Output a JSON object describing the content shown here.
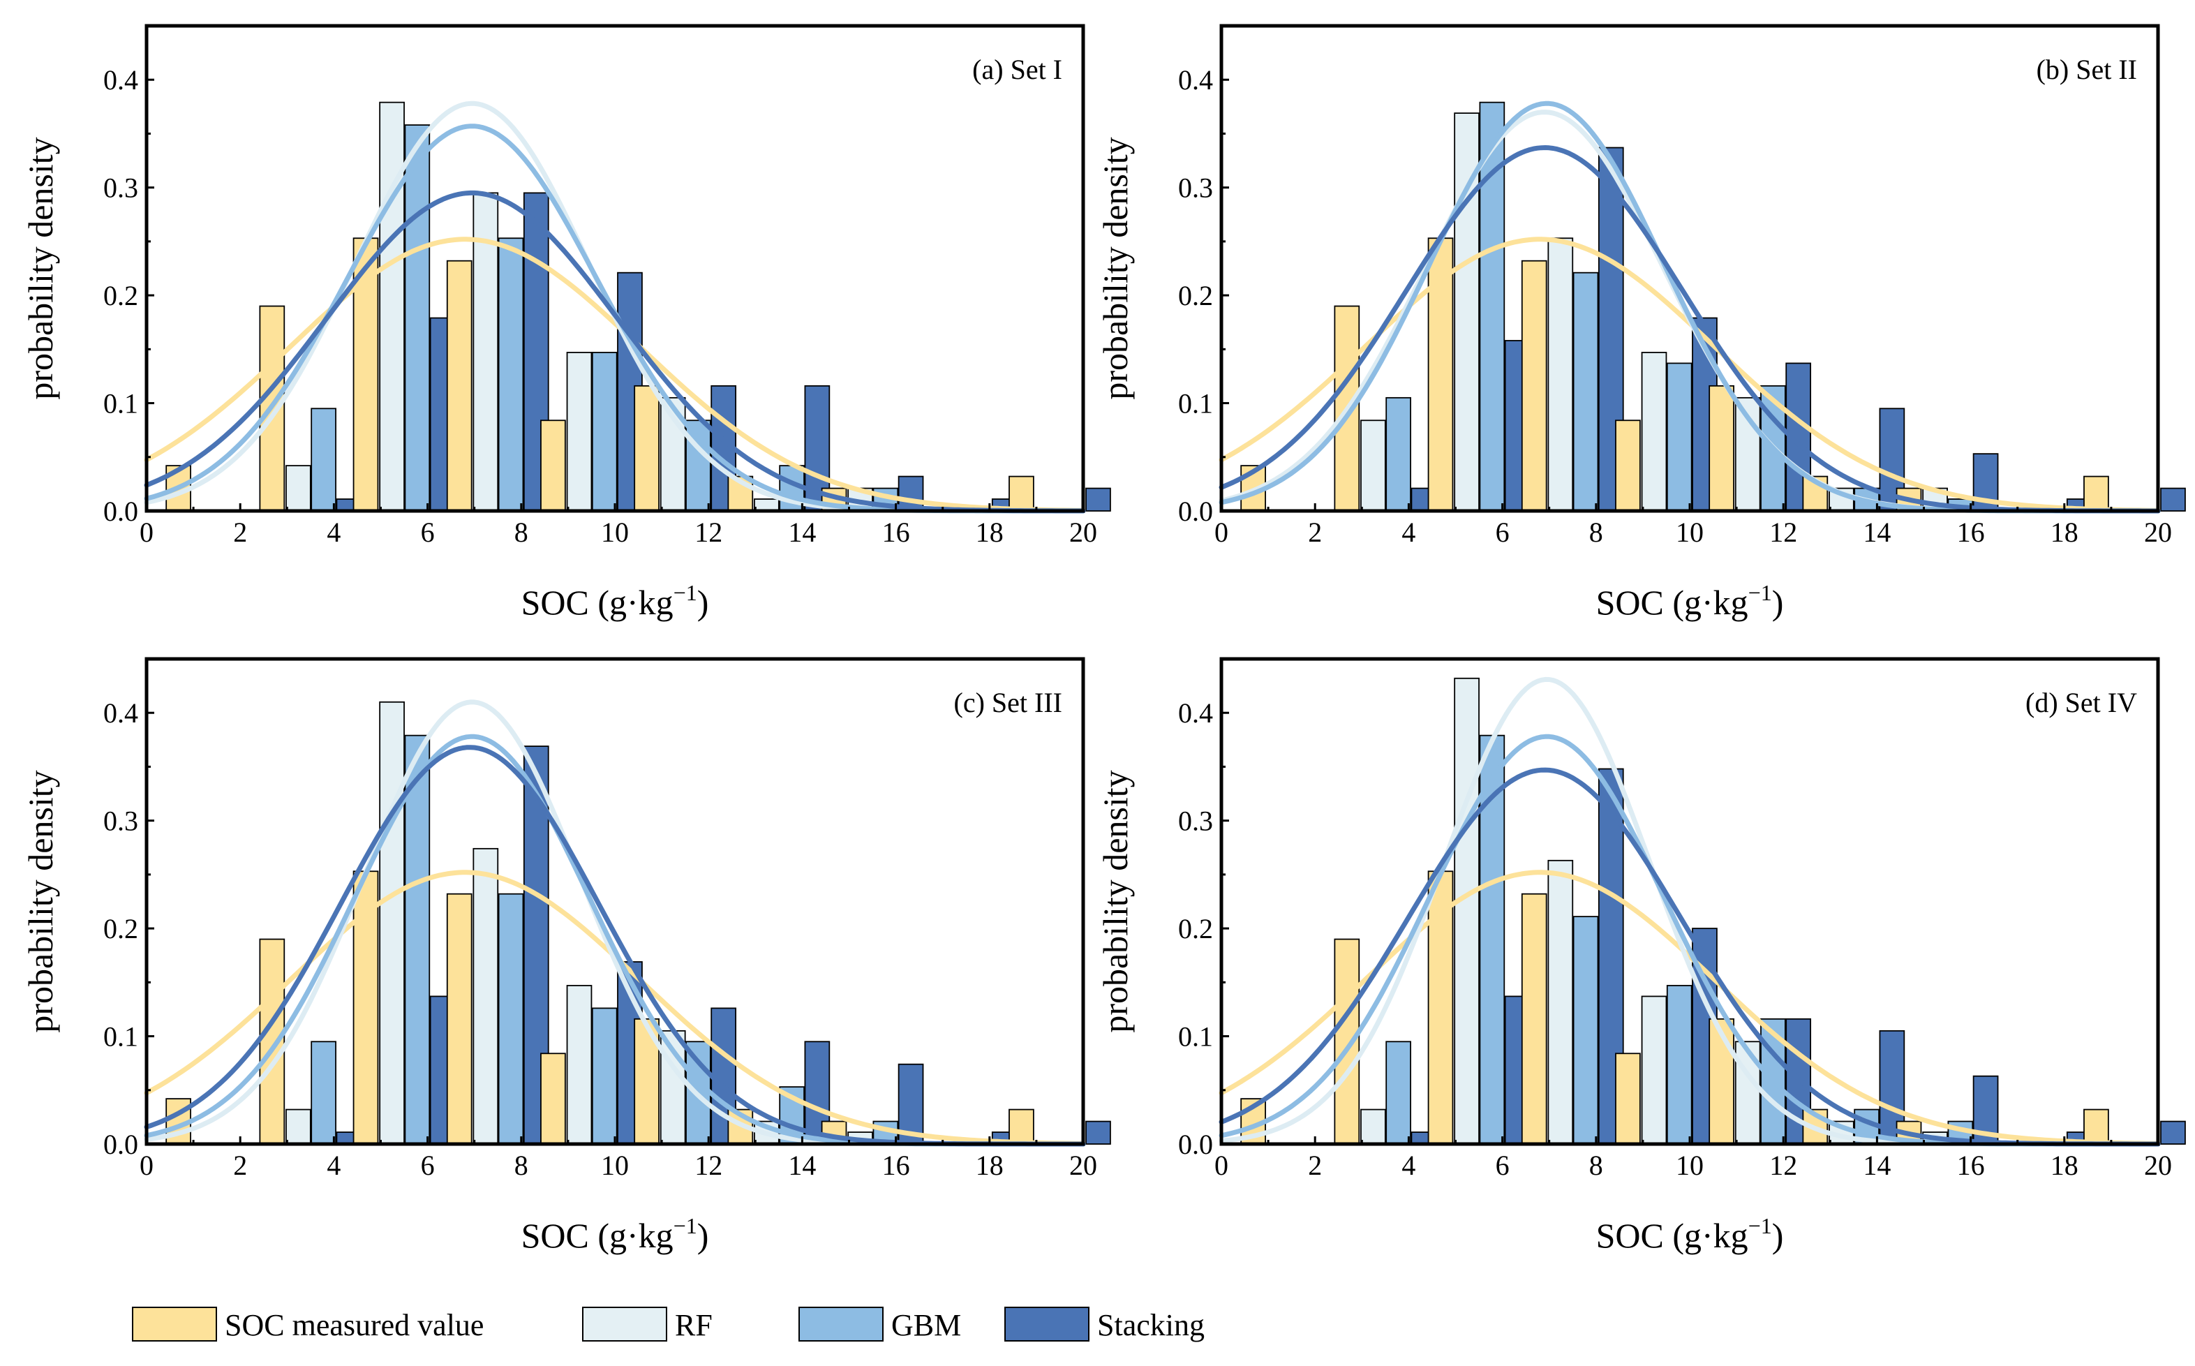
{
  "chart_data": [
    {
      "type": "bar",
      "title": "(a) Set I",
      "xlabel": "SOC (g·kg",
      "xlabel_sup": "−1",
      "xlabel_close": ")",
      "ylabel": "probability density",
      "xlim": [
        0,
        20
      ],
      "ylim": [
        0,
        0.45
      ],
      "xticks": [
        "0",
        "2",
        "4",
        "6",
        "8",
        "10",
        "12",
        "14",
        "16",
        "18",
        "20"
      ],
      "yticks": [
        "0.0",
        "0.1",
        "0.2",
        "0.3",
        "0.4"
      ],
      "bin_starts": [
        0,
        2,
        4,
        6,
        8,
        10,
        12,
        14,
        16,
        18
      ],
      "series": [
        {
          "name": "SOC measured value",
          "values": [
            0.042,
            0.19,
            0.253,
            0.232,
            0.084,
            0.116,
            0.032,
            0.021,
            0.0,
            0.032
          ],
          "mean": 6.8,
          "sd": 3.72,
          "peak": 0.252
        },
        {
          "name": "RF",
          "values": [
            0.0,
            0.042,
            0.379,
            0.295,
            0.147,
            0.105,
            0.011,
            0.021,
            0.0,
            0.0
          ],
          "mean": 6.95,
          "sd": 2.5,
          "peak": 0.378
        },
        {
          "name": "GBM",
          "values": [
            0.0,
            0.095,
            0.358,
            0.253,
            0.147,
            0.084,
            0.042,
            0.021,
            0.0,
            0.0
          ],
          "mean": 6.95,
          "sd": 2.65,
          "peak": 0.357
        },
        {
          "name": "Stacking",
          "values": [
            0.0,
            0.011,
            0.179,
            0.295,
            0.221,
            0.116,
            0.116,
            0.032,
            0.011,
            0.021
          ],
          "mean": 6.95,
          "sd": 3.1,
          "peak": 0.295
        }
      ]
    },
    {
      "type": "bar",
      "title": "(b) Set II",
      "xlabel": "SOC (g·kg",
      "xlabel_sup": "−1",
      "xlabel_close": ")",
      "ylabel": "probability density",
      "xlim": [
        0,
        20
      ],
      "ylim": [
        0,
        0.45
      ],
      "xticks": [
        "0",
        "2",
        "4",
        "6",
        "8",
        "10",
        "12",
        "14",
        "16",
        "18",
        "20"
      ],
      "yticks": [
        "0.0",
        "0.1",
        "0.2",
        "0.3",
        "0.4"
      ],
      "bin_starts": [
        0,
        2,
        4,
        6,
        8,
        10,
        12,
        14,
        16,
        18
      ],
      "series": [
        {
          "name": "SOC measured value",
          "values": [
            0.042,
            0.19,
            0.253,
            0.232,
            0.084,
            0.116,
            0.032,
            0.021,
            0.0,
            0.032
          ],
          "mean": 6.8,
          "sd": 3.72,
          "peak": 0.252
        },
        {
          "name": "RF",
          "values": [
            0.0,
            0.084,
            0.369,
            0.253,
            0.147,
            0.105,
            0.021,
            0.021,
            0.0,
            0.0
          ],
          "mean": 6.9,
          "sd": 2.55,
          "peak": 0.37
        },
        {
          "name": "GBM",
          "values": [
            0.0,
            0.105,
            0.379,
            0.221,
            0.137,
            0.116,
            0.021,
            0.011,
            0.0,
            0.0
          ],
          "mean": 6.95,
          "sd": 2.5,
          "peak": 0.378
        },
        {
          "name": "Stacking",
          "values": [
            0.0,
            0.021,
            0.158,
            0.337,
            0.179,
            0.137,
            0.095,
            0.053,
            0.011,
            0.021
          ],
          "mean": 6.9,
          "sd": 2.95,
          "peak": 0.337
        }
      ]
    },
    {
      "type": "bar",
      "title": "(c) Set III",
      "xlabel": "SOC (g·kg",
      "xlabel_sup": "−1",
      "xlabel_close": ")",
      "ylabel": "probability density",
      "xlim": [
        0,
        20
      ],
      "ylim": [
        0,
        0.45
      ],
      "xticks": [
        "0",
        "2",
        "4",
        "6",
        "8",
        "10",
        "12",
        "14",
        "16",
        "18",
        "20"
      ],
      "yticks": [
        "0.0",
        "0.1",
        "0.2",
        "0.3",
        "0.4"
      ],
      "bin_starts": [
        0,
        2,
        4,
        6,
        8,
        10,
        12,
        14,
        16,
        18
      ],
      "series": [
        {
          "name": "SOC measured value",
          "values": [
            0.042,
            0.19,
            0.253,
            0.232,
            0.084,
            0.116,
            0.032,
            0.021,
            0.0,
            0.032
          ],
          "mean": 6.8,
          "sd": 3.72,
          "peak": 0.252
        },
        {
          "name": "RF",
          "values": [
            0.0,
            0.032,
            0.41,
            0.274,
            0.147,
            0.105,
            0.021,
            0.011,
            0.0,
            0.0
          ],
          "mean": 6.95,
          "sd": 2.3,
          "peak": 0.41
        },
        {
          "name": "GBM",
          "values": [
            0.0,
            0.095,
            0.379,
            0.232,
            0.126,
            0.095,
            0.053,
            0.021,
            0.0,
            0.0
          ],
          "mean": 6.95,
          "sd": 2.5,
          "peak": 0.378
        },
        {
          "name": "Stacking",
          "values": [
            0.0,
            0.011,
            0.137,
            0.369,
            0.169,
            0.126,
            0.095,
            0.074,
            0.011,
            0.021
          ],
          "mean": 6.9,
          "sd": 2.75,
          "peak": 0.368
        }
      ]
    },
    {
      "type": "bar",
      "title": "(d) Set IV",
      "xlabel": "SOC (g·kg",
      "xlabel_sup": "−1",
      "xlabel_close": ")",
      "ylabel": "probability density",
      "xlim": [
        0,
        20
      ],
      "ylim": [
        0,
        0.45
      ],
      "xticks": [
        "0",
        "2",
        "4",
        "6",
        "8",
        "10",
        "12",
        "14",
        "16",
        "18",
        "20"
      ],
      "yticks": [
        "0.0",
        "0.1",
        "0.2",
        "0.3",
        "0.4"
      ],
      "bin_starts": [
        0,
        2,
        4,
        6,
        8,
        10,
        12,
        14,
        16,
        18
      ],
      "series": [
        {
          "name": "SOC measured value",
          "values": [
            0.042,
            0.19,
            0.253,
            0.232,
            0.084,
            0.116,
            0.032,
            0.021,
            0.0,
            0.032
          ],
          "mean": 6.8,
          "sd": 3.72,
          "peak": 0.252
        },
        {
          "name": "RF",
          "values": [
            0.0,
            0.032,
            0.432,
            0.263,
            0.137,
            0.095,
            0.021,
            0.011,
            0.0,
            0.0
          ],
          "mean": 6.95,
          "sd": 2.2,
          "peak": 0.431
        },
        {
          "name": "GBM",
          "values": [
            0.0,
            0.095,
            0.379,
            0.211,
            0.147,
            0.116,
            0.032,
            0.021,
            0.0,
            0.0
          ],
          "mean": 6.95,
          "sd": 2.5,
          "peak": 0.378
        },
        {
          "name": "Stacking",
          "values": [
            0.0,
            0.011,
            0.137,
            0.348,
            0.2,
            0.116,
            0.105,
            0.063,
            0.011,
            0.021
          ],
          "mean": 6.9,
          "sd": 2.9,
          "peak": 0.347
        }
      ]
    }
  ],
  "legend": {
    "position": "bottom",
    "items": [
      {
        "label": "SOC measured value",
        "color": "#FDE29A"
      },
      {
        "label": "RF",
        "color": "#E4F0F4"
      },
      {
        "label": "GBM",
        "color": "#8DBCE3"
      },
      {
        "label": "Stacking",
        "color": "#4A74B5"
      }
    ]
  },
  "colors": {
    "bars": [
      "#FDE29A",
      "#E4F0F4",
      "#8DBCE3",
      "#4A74B5"
    ],
    "curves": [
      "#FDE29A",
      "#DDECF3",
      "#8DBCE3",
      "#4A74B5"
    ]
  }
}
